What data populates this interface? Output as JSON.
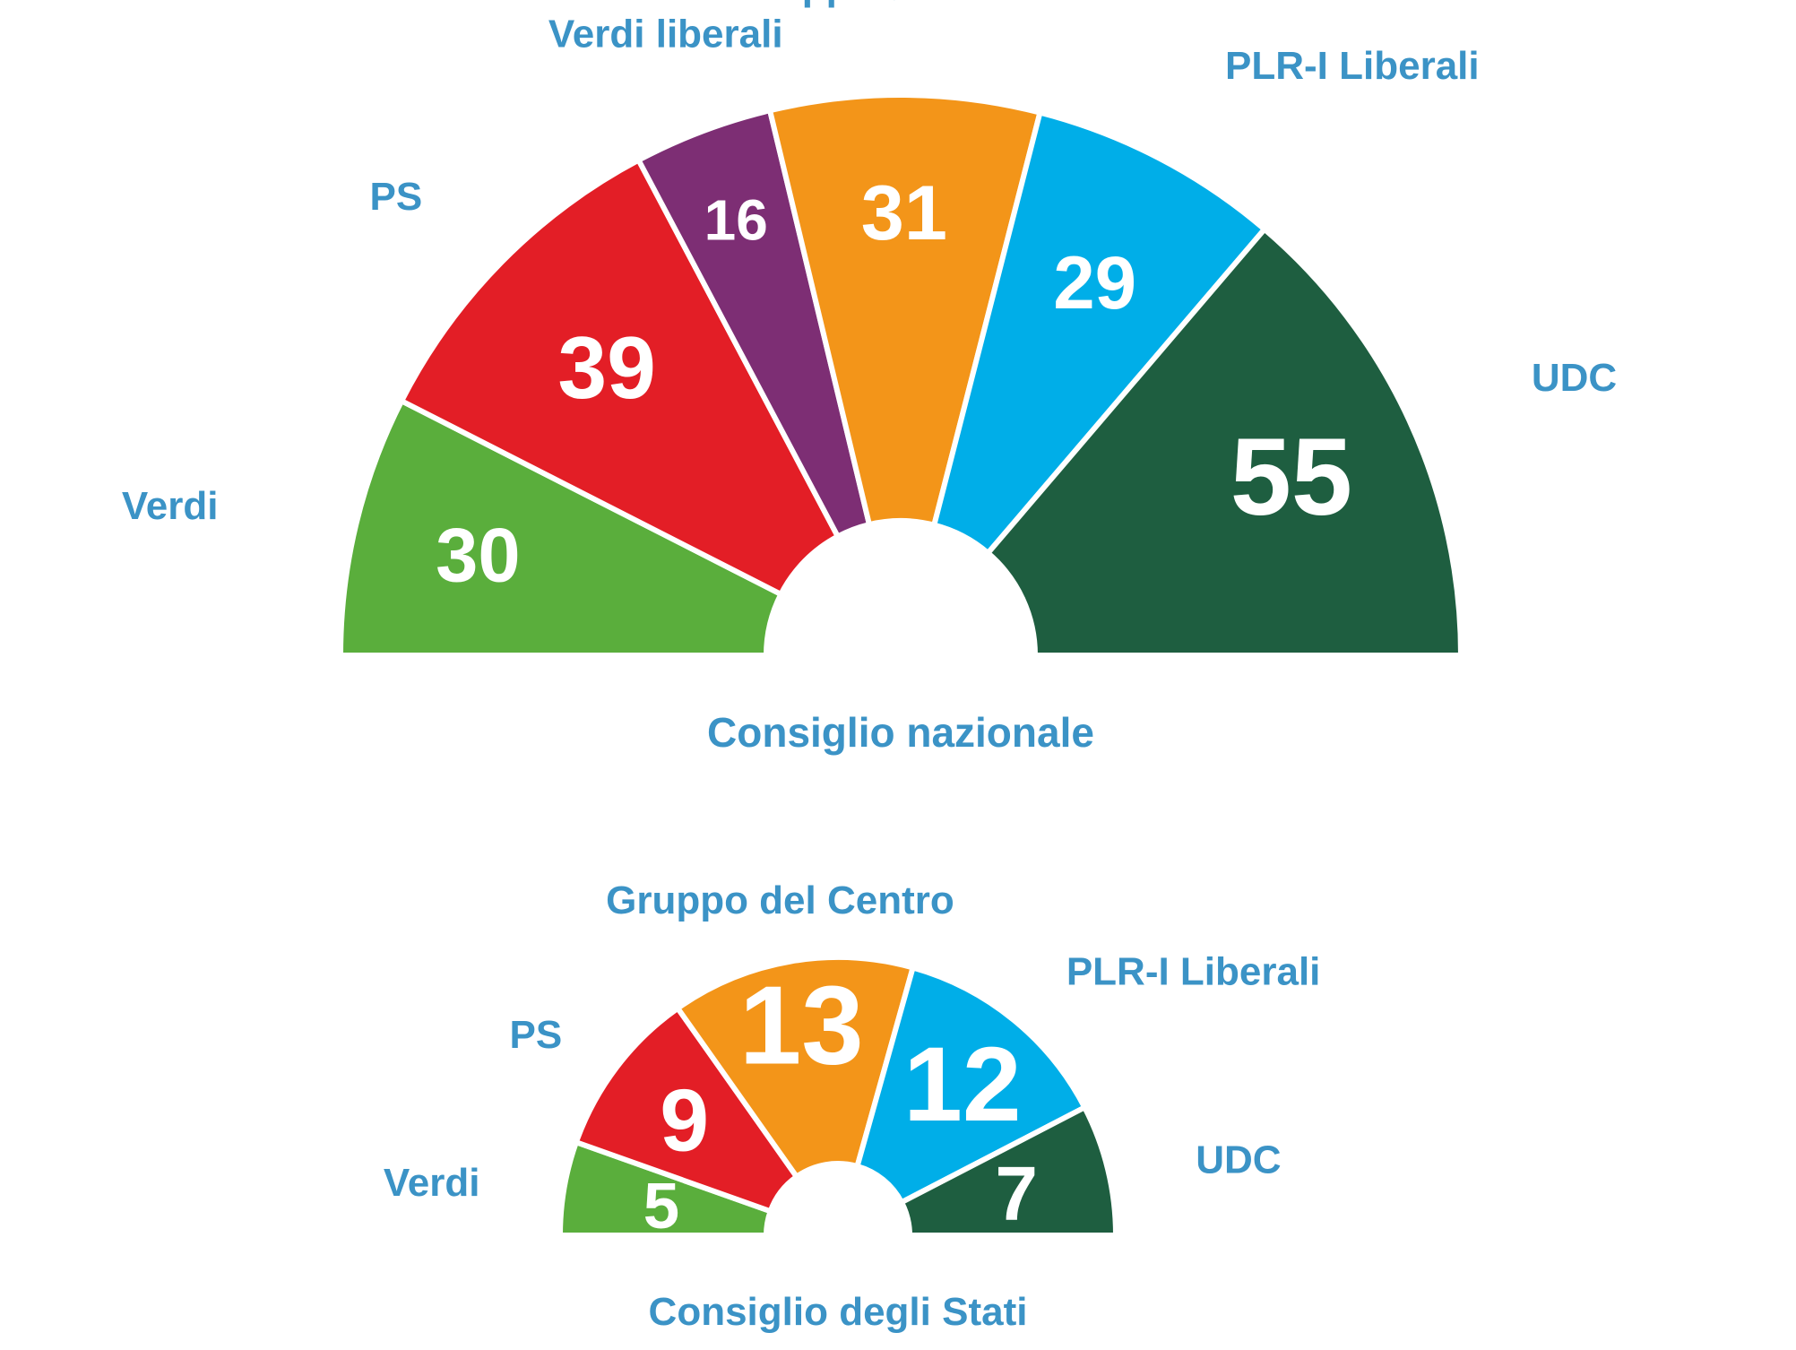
{
  "chart_data": [
    {
      "type": "pie",
      "variant": "half-donut",
      "title": "Consiglio nazionale",
      "categories": [
        "Verdi",
        "PS",
        "Verdi liberali",
        "Gruppo del Centro",
        "PLR-I Liberali",
        "UDC"
      ],
      "values": [
        30,
        39,
        16,
        31,
        29,
        55
      ],
      "colors": [
        "#5aae3c",
        "#e31e26",
        "#7d2e74",
        "#f39519",
        "#00aee8",
        "#1e5e40"
      ]
    },
    {
      "type": "pie",
      "variant": "half-donut",
      "title": "Consiglio degli Stati",
      "categories": [
        "Verdi",
        "PS",
        "Gruppo del Centro",
        "PLR-I Liberali",
        "UDC"
      ],
      "values": [
        5,
        9,
        13,
        12,
        7
      ],
      "colors": [
        "#5aae3c",
        "#e31e26",
        "#f39519",
        "#00aee8",
        "#1e5e40"
      ]
    }
  ],
  "colors": {
    "label_text": "#3b93c6",
    "value_text": "#ffffff",
    "background": "#ffffff"
  }
}
